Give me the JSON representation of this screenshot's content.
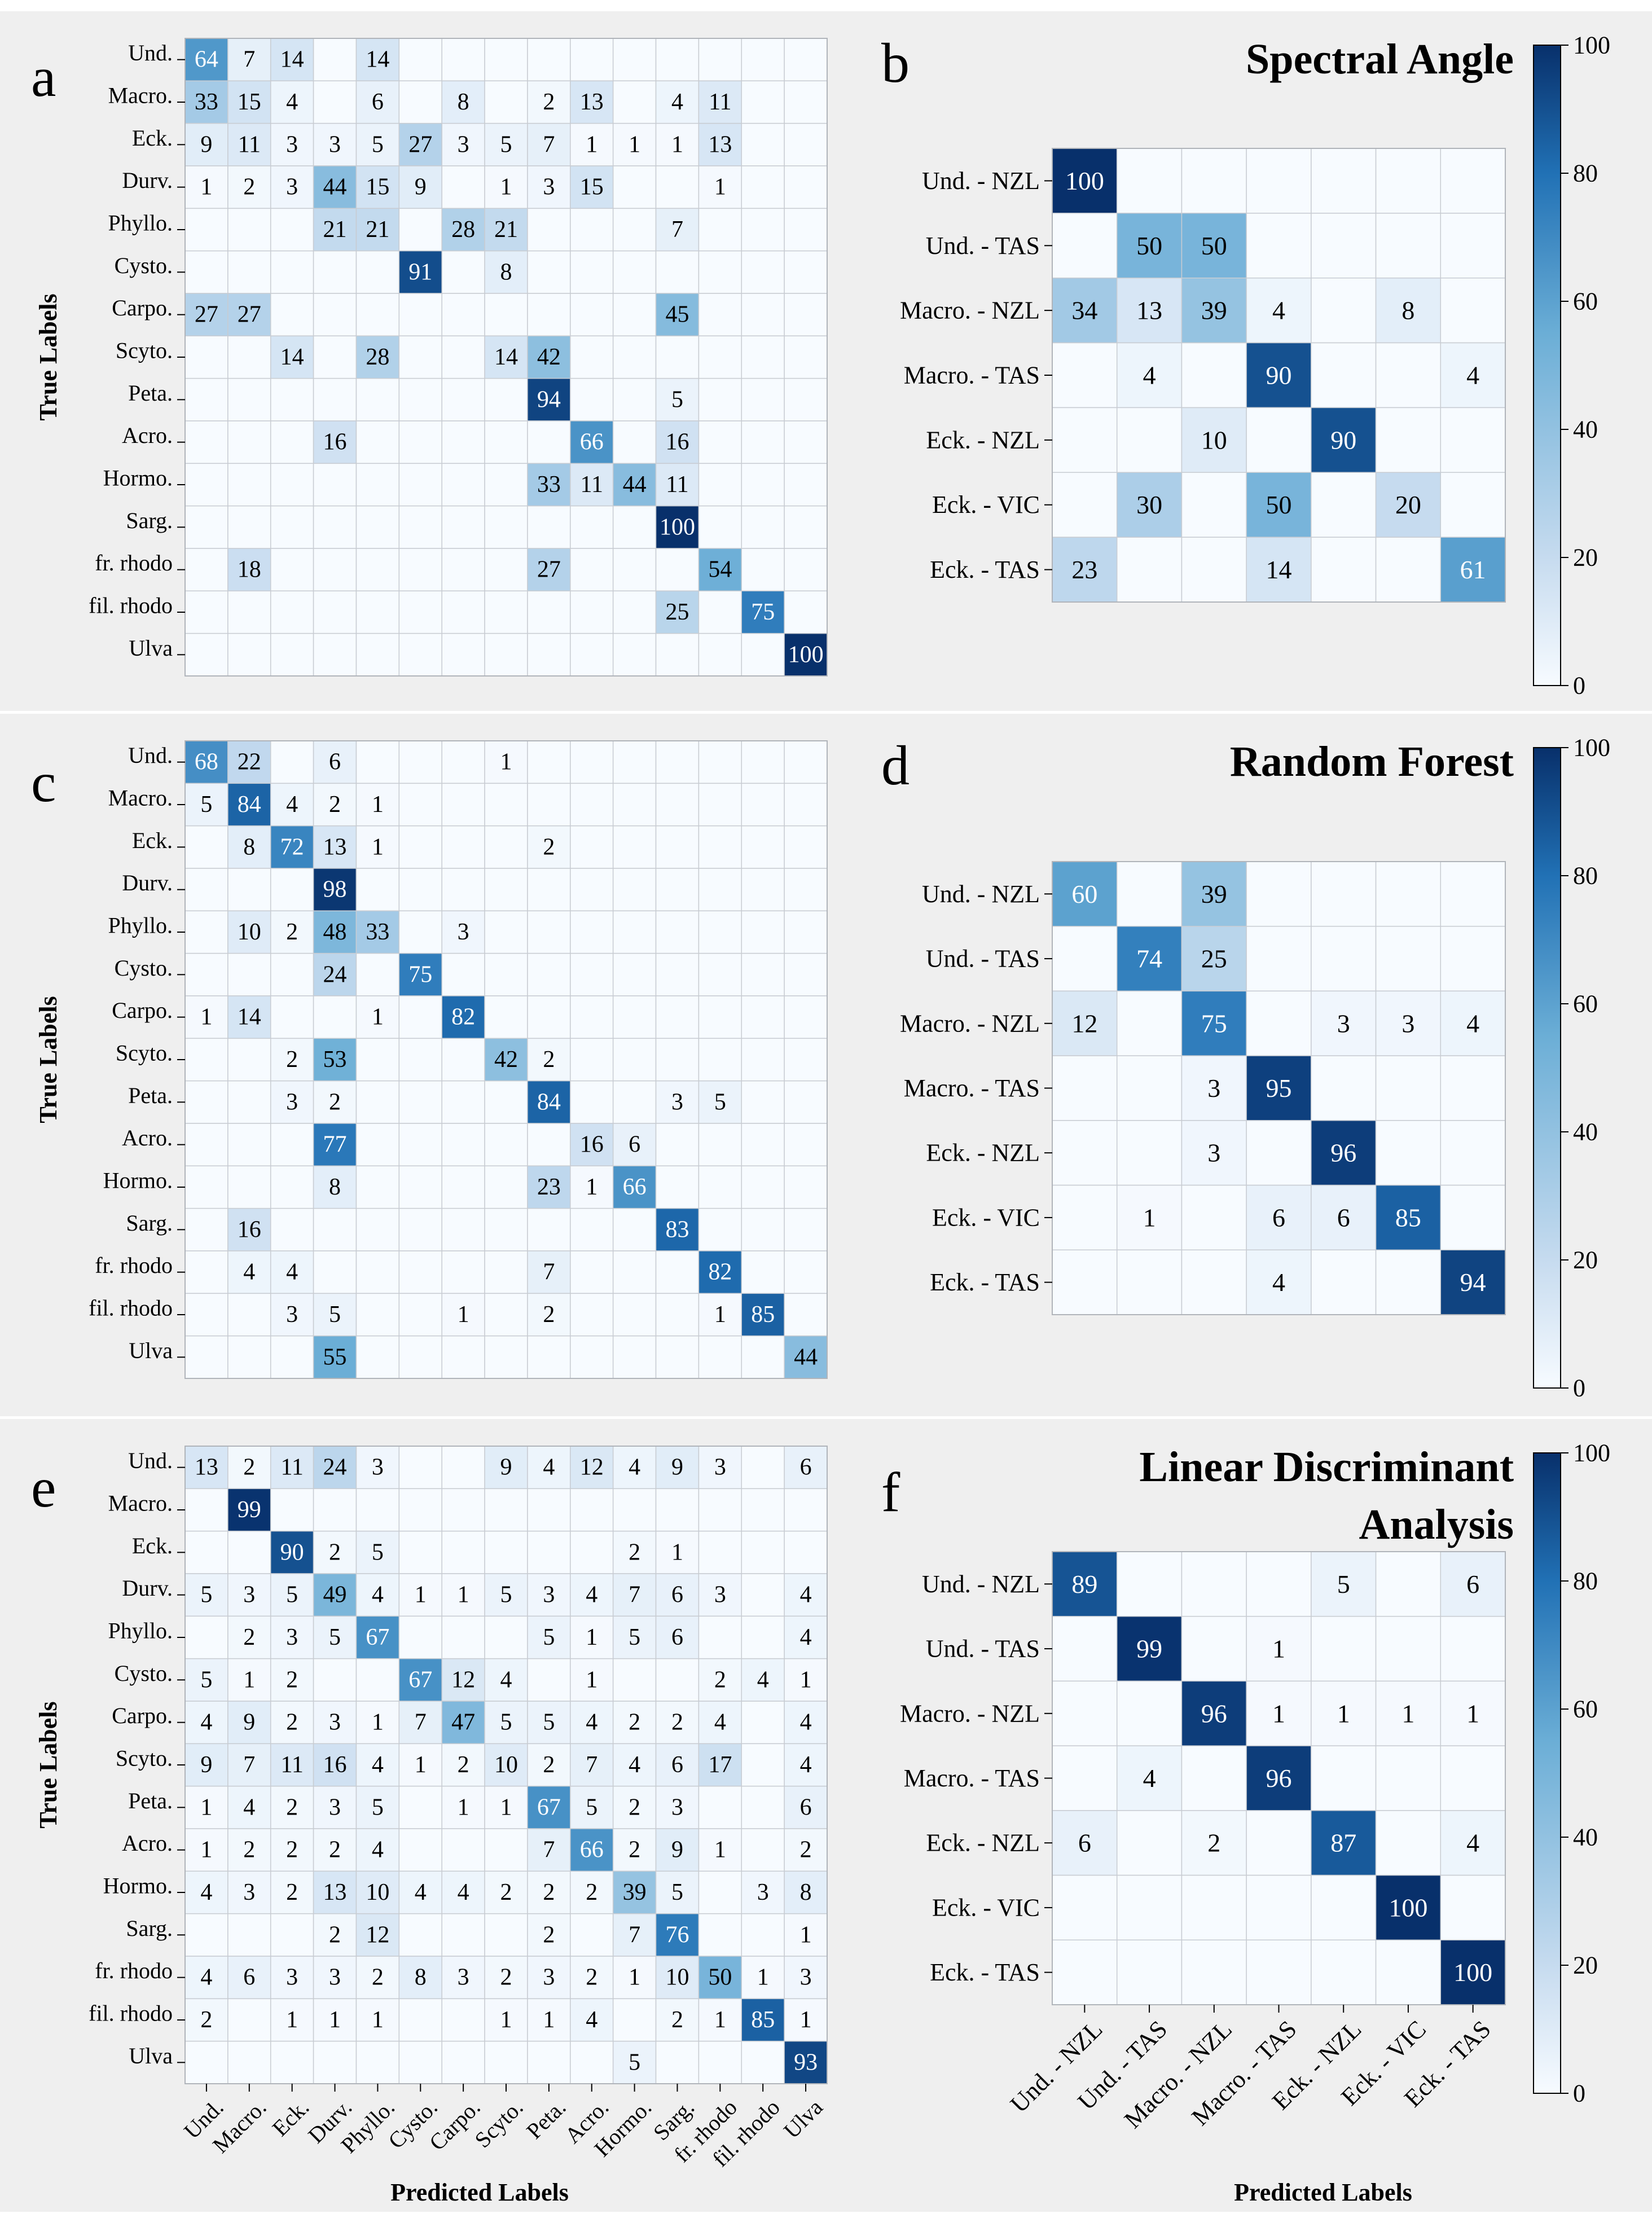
{
  "colormap": {
    "low": "#f7fbff",
    "mid1": "#c6dbef",
    "mid2": "#6baed6",
    "mid3": "#2171b5",
    "high": "#08306b",
    "text_dark": "#000000",
    "text_light": "#ffffff"
  },
  "species_labels": [
    "Und.",
    "Macro.",
    "Eck.",
    "Durv.",
    "Phyllo.",
    "Cysto.",
    "Carpo.",
    "Scyto.",
    "Peta.",
    "Acro.",
    "Hormo.",
    "Sarg.",
    "fr. rhodo",
    "fil. rhodo",
    "Ulva"
  ],
  "region_labels": [
    "Und. - NZL",
    "Und. - TAS",
    "Macro. - NZL",
    "Macro. - TAS",
    "Eck. - NZL",
    "Eck. - VIC",
    "Eck. - TAS"
  ],
  "axis": {
    "ylabel": "True Labels",
    "xlabel": "Predicted Labels"
  },
  "colorbar": {
    "ticks": [
      "0",
      "20",
      "40",
      "60",
      "80",
      "100"
    ],
    "range": [
      0,
      100
    ]
  },
  "chart_data": [
    {
      "type": "heatmap",
      "panel": "a",
      "title": "",
      "labels": "species",
      "matrix": [
        [
          64,
          7,
          14,
          null,
          14,
          null,
          null,
          null,
          null,
          null,
          null,
          null,
          null,
          null,
          null
        ],
        [
          33,
          15,
          4,
          null,
          6,
          null,
          8,
          null,
          2,
          13,
          null,
          4,
          11,
          null,
          null
        ],
        [
          9,
          11,
          3,
          3,
          5,
          27,
          3,
          5,
          7,
          1,
          1,
          1,
          13,
          null,
          null
        ],
        [
          1,
          2,
          3,
          44,
          15,
          9,
          null,
          1,
          3,
          15,
          null,
          null,
          1,
          null,
          null
        ],
        [
          null,
          null,
          null,
          21,
          21,
          null,
          28,
          21,
          null,
          null,
          null,
          7,
          null,
          null,
          null
        ],
        [
          null,
          null,
          null,
          null,
          null,
          91,
          null,
          8,
          null,
          null,
          null,
          null,
          null,
          null,
          null
        ],
        [
          27,
          27,
          null,
          null,
          null,
          null,
          null,
          null,
          null,
          null,
          null,
          45,
          null,
          null,
          null
        ],
        [
          null,
          null,
          14,
          null,
          28,
          null,
          null,
          14,
          42,
          null,
          null,
          null,
          null,
          null,
          null
        ],
        [
          null,
          null,
          null,
          null,
          null,
          null,
          null,
          null,
          94,
          null,
          null,
          5,
          null,
          null,
          null
        ],
        [
          null,
          null,
          null,
          16,
          null,
          null,
          null,
          null,
          null,
          66,
          null,
          16,
          null,
          null,
          null
        ],
        [
          null,
          null,
          null,
          null,
          null,
          null,
          null,
          null,
          33,
          11,
          44,
          11,
          null,
          null,
          null
        ],
        [
          null,
          null,
          null,
          null,
          null,
          null,
          null,
          null,
          null,
          null,
          null,
          100,
          null,
          null,
          null
        ],
        [
          null,
          18,
          null,
          null,
          null,
          null,
          null,
          null,
          27,
          null,
          null,
          null,
          54,
          null,
          null
        ],
        [
          null,
          null,
          null,
          null,
          null,
          null,
          null,
          null,
          null,
          null,
          null,
          25,
          null,
          75,
          null
        ],
        [
          null,
          null,
          null,
          null,
          null,
          null,
          null,
          null,
          null,
          null,
          null,
          null,
          null,
          null,
          100
        ]
      ]
    },
    {
      "type": "heatmap",
      "panel": "b",
      "title": "Spectral Angle",
      "labels": "region",
      "matrix": [
        [
          100,
          null,
          null,
          null,
          null,
          null,
          null
        ],
        [
          null,
          50,
          50,
          null,
          null,
          null,
          null
        ],
        [
          34,
          13,
          39,
          4,
          null,
          8,
          null
        ],
        [
          null,
          4,
          null,
          90,
          null,
          null,
          4
        ],
        [
          null,
          null,
          10,
          null,
          90,
          null,
          null
        ],
        [
          null,
          30,
          null,
          50,
          null,
          20,
          null
        ],
        [
          23,
          null,
          null,
          14,
          null,
          null,
          61
        ]
      ]
    },
    {
      "type": "heatmap",
      "panel": "c",
      "title": "",
      "labels": "species",
      "matrix": [
        [
          68,
          22,
          null,
          6,
          null,
          null,
          null,
          1,
          null,
          null,
          null,
          null,
          null,
          null,
          null
        ],
        [
          5,
          84,
          4,
          2,
          1,
          null,
          null,
          null,
          null,
          null,
          null,
          null,
          null,
          null,
          null
        ],
        [
          null,
          8,
          72,
          13,
          1,
          null,
          null,
          null,
          2,
          null,
          null,
          null,
          null,
          null,
          null
        ],
        [
          null,
          null,
          null,
          98,
          null,
          null,
          null,
          null,
          null,
          null,
          null,
          null,
          null,
          null,
          null
        ],
        [
          null,
          10,
          2,
          48,
          33,
          null,
          3,
          null,
          null,
          null,
          null,
          null,
          null,
          null,
          null
        ],
        [
          null,
          null,
          null,
          24,
          null,
          75,
          null,
          null,
          null,
          null,
          null,
          null,
          null,
          null,
          null
        ],
        [
          1,
          14,
          null,
          null,
          1,
          null,
          82,
          null,
          null,
          null,
          null,
          null,
          null,
          null,
          null
        ],
        [
          null,
          null,
          2,
          53,
          null,
          null,
          null,
          42,
          2,
          null,
          null,
          null,
          null,
          null,
          null
        ],
        [
          null,
          null,
          3,
          2,
          null,
          null,
          null,
          null,
          84,
          null,
          null,
          3,
          5,
          null,
          null
        ],
        [
          null,
          null,
          null,
          77,
          null,
          null,
          null,
          null,
          null,
          16,
          6,
          null,
          null,
          null,
          null
        ],
        [
          null,
          null,
          null,
          8,
          null,
          null,
          null,
          null,
          23,
          1,
          66,
          null,
          null,
          null,
          null
        ],
        [
          null,
          16,
          null,
          null,
          null,
          null,
          null,
          null,
          null,
          null,
          null,
          83,
          null,
          null,
          null
        ],
        [
          null,
          4,
          4,
          null,
          null,
          null,
          null,
          null,
          7,
          null,
          null,
          null,
          82,
          null,
          null
        ],
        [
          null,
          null,
          3,
          5,
          null,
          null,
          1,
          null,
          2,
          null,
          null,
          null,
          1,
          85,
          null
        ],
        [
          null,
          null,
          null,
          55,
          null,
          null,
          null,
          null,
          null,
          null,
          null,
          null,
          null,
          null,
          44
        ]
      ]
    },
    {
      "type": "heatmap",
      "panel": "d",
      "title": "Random Forest",
      "labels": "region",
      "matrix": [
        [
          60,
          null,
          39,
          null,
          null,
          null,
          null
        ],
        [
          null,
          74,
          25,
          null,
          null,
          null,
          null
        ],
        [
          12,
          null,
          75,
          null,
          3,
          3,
          4
        ],
        [
          null,
          null,
          3,
          95,
          null,
          null,
          null
        ],
        [
          null,
          null,
          3,
          null,
          96,
          null,
          null
        ],
        [
          null,
          1,
          null,
          6,
          6,
          85,
          null
        ],
        [
          null,
          null,
          null,
          4,
          null,
          null,
          94
        ]
      ]
    },
    {
      "type": "heatmap",
      "panel": "e",
      "title": "",
      "labels": "species",
      "matrix": [
        [
          13,
          2,
          11,
          24,
          3,
          null,
          null,
          9,
          4,
          12,
          4,
          9,
          3,
          null,
          6
        ],
        [
          null,
          99,
          null,
          null,
          null,
          null,
          null,
          null,
          null,
          null,
          null,
          null,
          null,
          null,
          null
        ],
        [
          null,
          null,
          90,
          2,
          5,
          null,
          null,
          null,
          null,
          null,
          2,
          1,
          null,
          null,
          null
        ],
        [
          5,
          3,
          5,
          49,
          4,
          1,
          1,
          5,
          3,
          4,
          7,
          6,
          3,
          null,
          4
        ],
        [
          null,
          2,
          3,
          5,
          67,
          null,
          null,
          null,
          5,
          1,
          5,
          6,
          null,
          null,
          4
        ],
        [
          5,
          1,
          2,
          null,
          null,
          67,
          12,
          4,
          null,
          1,
          null,
          null,
          2,
          4,
          1
        ],
        [
          4,
          9,
          2,
          3,
          1,
          7,
          47,
          5,
          5,
          4,
          2,
          2,
          4,
          null,
          4
        ],
        [
          9,
          7,
          11,
          16,
          4,
          1,
          2,
          10,
          2,
          7,
          4,
          6,
          17,
          null,
          4
        ],
        [
          1,
          4,
          2,
          3,
          5,
          null,
          1,
          1,
          67,
          5,
          2,
          3,
          null,
          null,
          6
        ],
        [
          1,
          2,
          2,
          2,
          4,
          null,
          null,
          null,
          7,
          66,
          2,
          9,
          1,
          null,
          2
        ],
        [
          4,
          3,
          2,
          13,
          10,
          4,
          4,
          2,
          2,
          2,
          39,
          5,
          null,
          3,
          8
        ],
        [
          null,
          null,
          null,
          2,
          12,
          null,
          null,
          null,
          2,
          null,
          7,
          76,
          null,
          null,
          1
        ],
        [
          4,
          6,
          3,
          3,
          2,
          8,
          3,
          2,
          3,
          2,
          1,
          10,
          50,
          1,
          3
        ],
        [
          2,
          null,
          1,
          1,
          1,
          null,
          null,
          1,
          1,
          4,
          null,
          2,
          1,
          85,
          1
        ],
        [
          null,
          null,
          null,
          null,
          null,
          null,
          null,
          null,
          null,
          null,
          5,
          null,
          null,
          null,
          93
        ]
      ]
    },
    {
      "type": "heatmap",
      "panel": "f",
      "title": "Linear Discriminant Analysis",
      "title_lines": [
        "Linear Discriminant",
        "Analysis"
      ],
      "labels": "region",
      "matrix": [
        [
          89,
          null,
          null,
          null,
          5,
          null,
          6
        ],
        [
          null,
          99,
          null,
          1,
          null,
          null,
          null
        ],
        [
          null,
          null,
          96,
          1,
          1,
          1,
          1
        ],
        [
          null,
          4,
          null,
          96,
          null,
          null,
          null
        ],
        [
          6,
          null,
          2,
          null,
          87,
          null,
          4
        ],
        [
          null,
          null,
          null,
          null,
          null,
          100,
          null
        ],
        [
          null,
          null,
          null,
          null,
          null,
          null,
          100
        ]
      ]
    }
  ]
}
